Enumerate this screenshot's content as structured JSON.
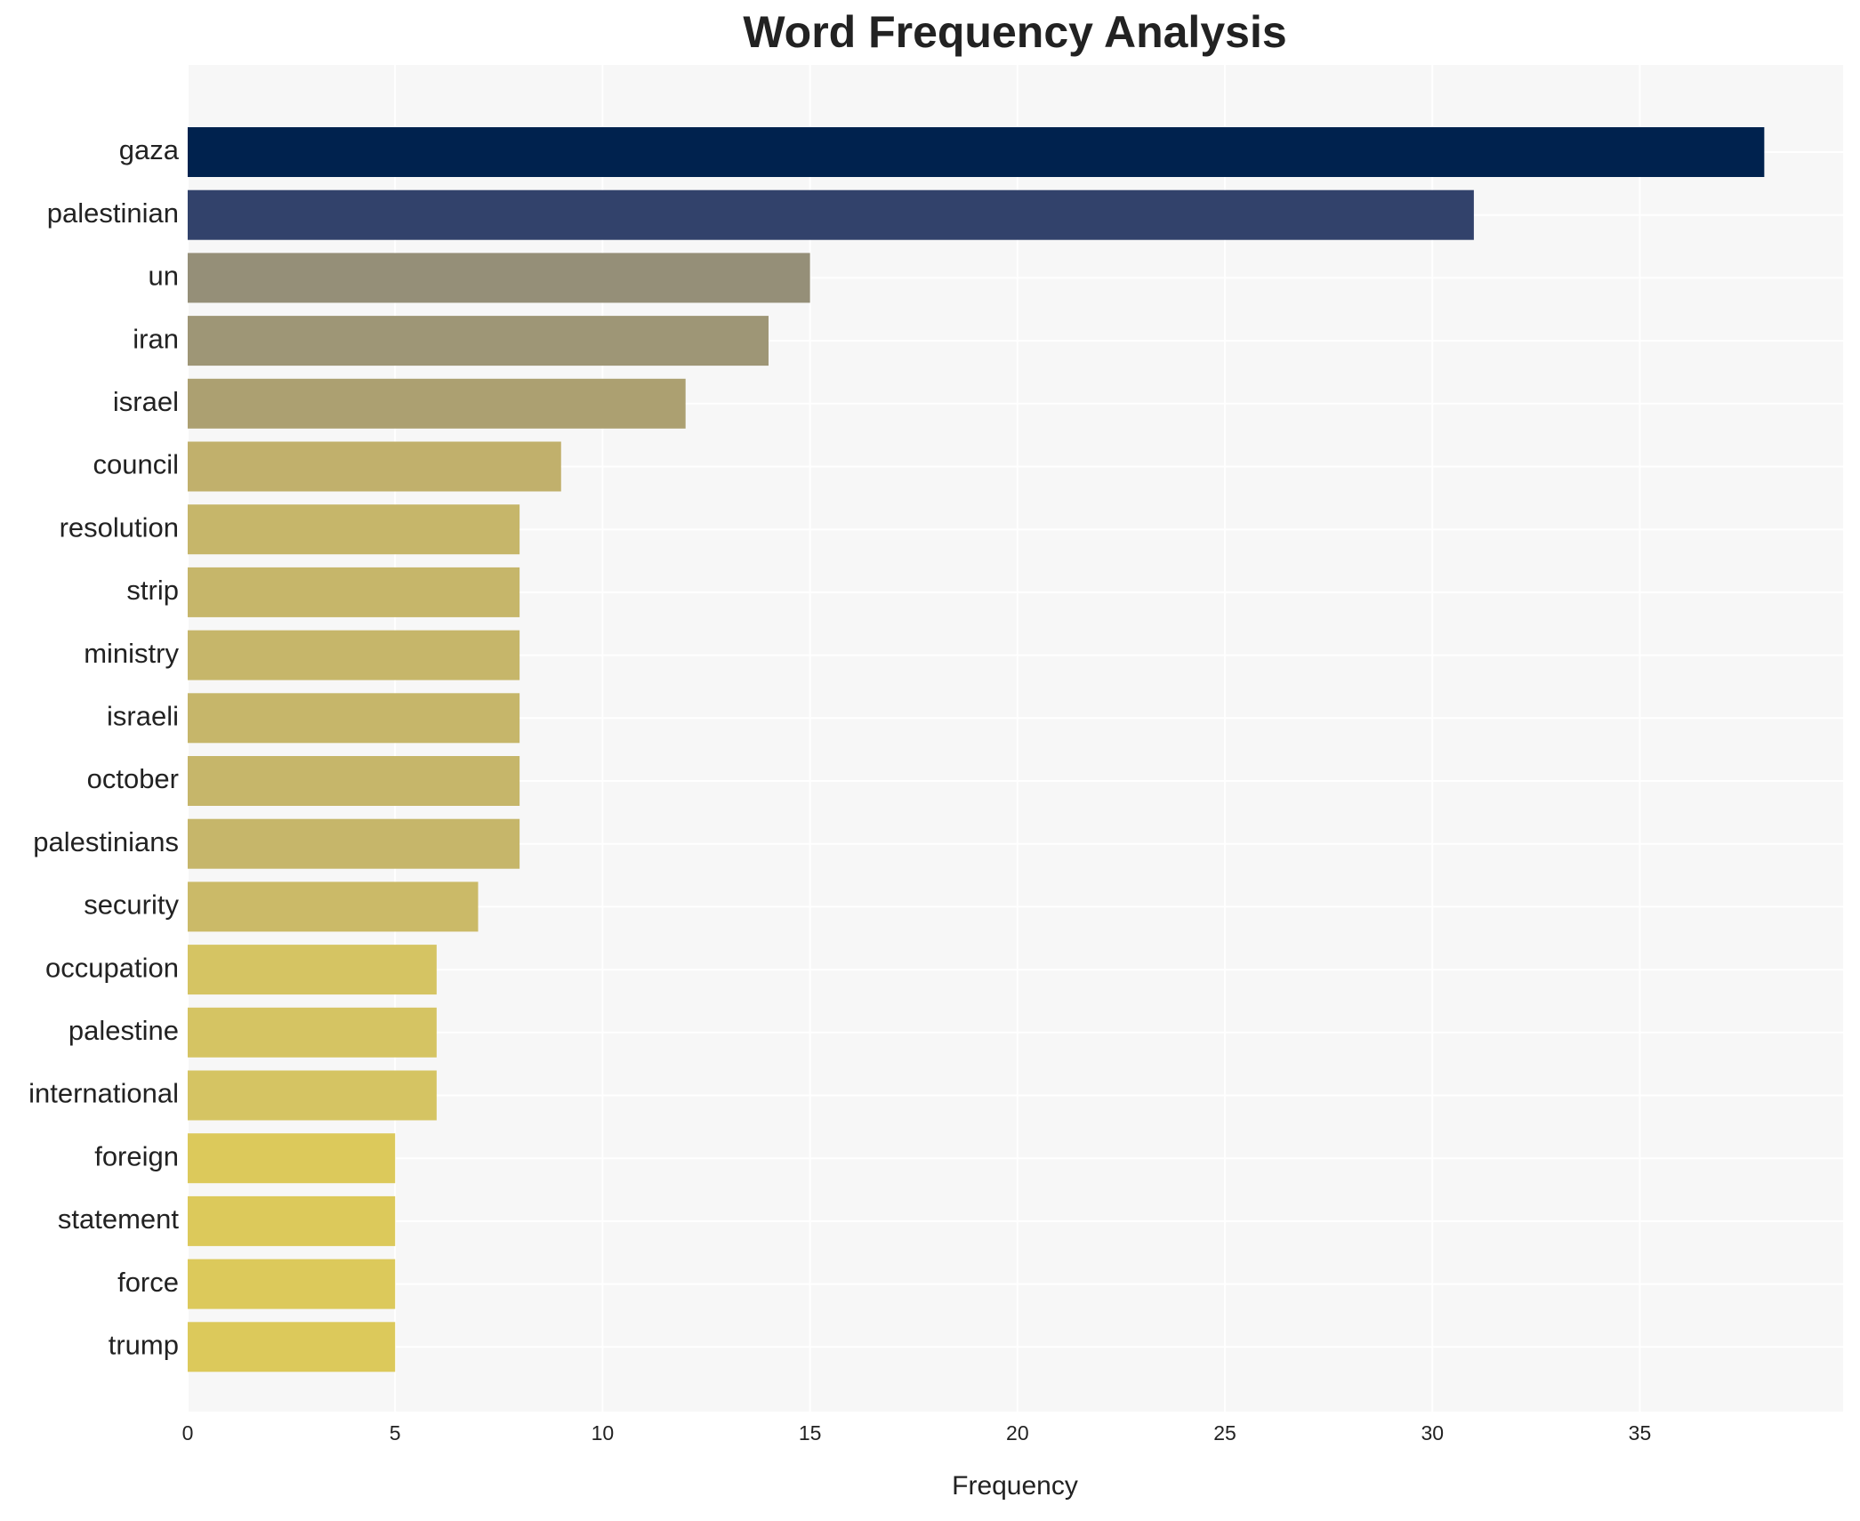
{
  "chart_data": {
    "type": "barh",
    "title": "Word Frequency Analysis",
    "x_label": "Frequency",
    "categories": [
      "gaza",
      "palestinian",
      "un",
      "iran",
      "israel",
      "council",
      "resolution",
      "strip",
      "ministry",
      "israeli",
      "october",
      "palestinians",
      "security",
      "occupation",
      "palestine",
      "international",
      "foreign",
      "statement",
      "force",
      "trump"
    ],
    "values": [
      38,
      31,
      15,
      14,
      12,
      9,
      8,
      8,
      8,
      8,
      8,
      8,
      7,
      6,
      6,
      6,
      5,
      5,
      5,
      5
    ],
    "colors": [
      "#00224e",
      "#32426b",
      "#958f78",
      "#9e9676",
      "#aca071",
      "#c1b06c",
      "#c6b66a",
      "#c6b66a",
      "#c6b66a",
      "#c6b66a",
      "#c6b66a",
      "#c6b66a",
      "#cbba68",
      "#d5c463",
      "#d5c463",
      "#d5c463",
      "#dcc95b",
      "#dcc95b",
      "#dcc95b",
      "#dcc95b"
    ],
    "xlim": [
      0,
      39.9
    ],
    "xticks": [
      0,
      5,
      10,
      15,
      20,
      25,
      30,
      35
    ],
    "grid": true
  }
}
